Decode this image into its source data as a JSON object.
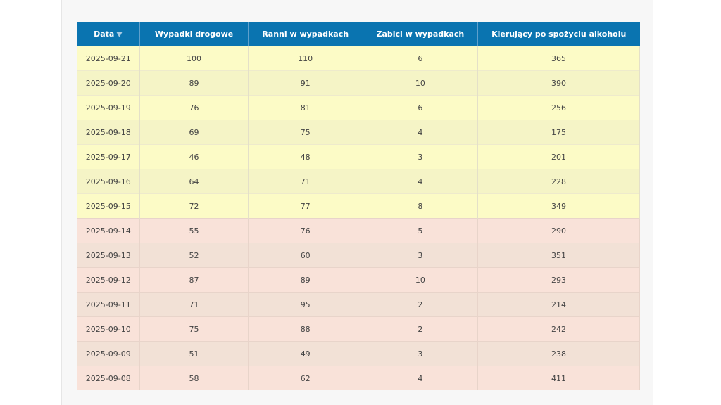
{
  "table": {
    "headers": [
      "Data",
      "Wypadki drogowe",
      "Ranni w wypadkach",
      "Zabici w wypadkach",
      "Kierujący po spożyciu alkoholu"
    ],
    "rows": [
      [
        "2025-09-21",
        100,
        110,
        6,
        365
      ],
      [
        "2025-09-20",
        89,
        91,
        10,
        390
      ],
      [
        "2025-09-19",
        76,
        81,
        6,
        256
      ],
      [
        "2025-09-18",
        69,
        75,
        4,
        175
      ],
      [
        "2025-09-17",
        46,
        48,
        3,
        201
      ],
      [
        "2025-09-16",
        64,
        71,
        4,
        228
      ],
      [
        "2025-09-15",
        72,
        77,
        8,
        349
      ],
      [
        "2025-09-14",
        55,
        76,
        5,
        290
      ],
      [
        "2025-09-13",
        52,
        60,
        3,
        351
      ],
      [
        "2025-09-12",
        87,
        89,
        10,
        293
      ],
      [
        "2025-09-11",
        71,
        95,
        2,
        214
      ],
      [
        "2025-09-10",
        75,
        88,
        2,
        242
      ],
      [
        "2025-09-09",
        51,
        49,
        3,
        238
      ],
      [
        "2025-09-08",
        58,
        62,
        4,
        411
      ]
    ]
  }
}
